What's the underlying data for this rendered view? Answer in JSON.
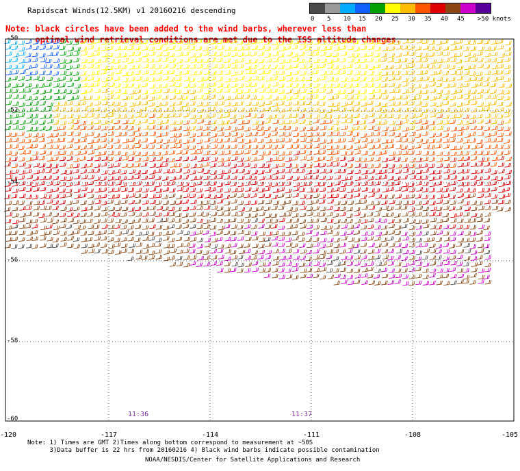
{
  "header": {
    "title": "Rapidscat Winds(12.5KM) v1 20160216 descending",
    "note_line1": "Note: black circles have been added to the wind barbs, wherever less than",
    "note_line2": "      optimal wind retrieval conditions are met due to the ISS altitude changes."
  },
  "legend": {
    "labels": [
      "0",
      "5",
      "10",
      "15",
      "20",
      "25",
      "30",
      "35",
      "40",
      "45",
      ">50 knots"
    ],
    "colors": [
      "#4a4a4a",
      "#9a9a9a",
      "#00aaff",
      "#1060ff",
      "#00a000",
      "#ffff00",
      "#ffbb00",
      "#ff5500",
      "#dd0000",
      "#8b4513",
      "#cc00cc",
      "#5a009a"
    ]
  },
  "map": {
    "latitudes": [
      "-50",
      "-52",
      "-54",
      "-56",
      "-58",
      "-60"
    ],
    "longitudes": [
      "-120",
      "-117",
      "-114",
      "-111",
      "-108",
      "-105"
    ],
    "times": [
      {
        "label": "11:36"
      },
      {
        "label": "11:37"
      }
    ]
  },
  "footer": {
    "note1": "Note: 1) Times are GMT 2)Times along bottom correspond to measurement at ~50S",
    "note2": "      3)Data buffer is 22 hrs from 20160216 4) Black wind barbs indicate possible contamination",
    "credit": "NOAA/NESDIS/Center for Satellite Applications and Research"
  }
}
